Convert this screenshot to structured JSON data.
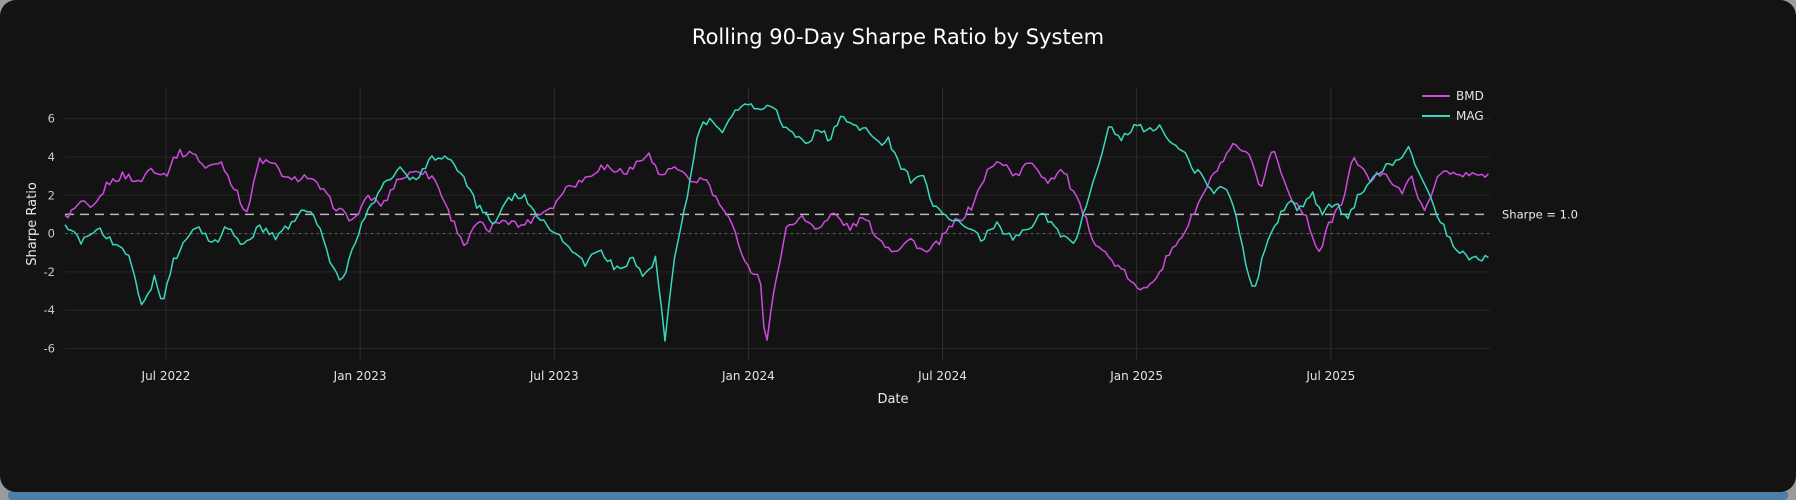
{
  "frame": {
    "panel_bg": "#131313",
    "outer_bg": "#9a9a9a",
    "accent_strip_color": "#4d7fa9"
  },
  "chart_data": {
    "type": "line",
    "title": "Rolling 90-Day Sharpe Ratio by System",
    "xlabel": "Date",
    "ylabel": "Sharpe Ratio",
    "x_domain": [
      2022.24,
      2025.91
    ],
    "ylim": [
      -6.6,
      7.6
    ],
    "y_ticks": [
      -6,
      -4,
      -2,
      0,
      2,
      4,
      6
    ],
    "x_ticks": [
      {
        "pos": 2022.5,
        "label": "Jul 2022"
      },
      {
        "pos": 2023.0,
        "label": "Jan 2023"
      },
      {
        "pos": 2023.5,
        "label": "Jul 2023"
      },
      {
        "pos": 2024.0,
        "label": "Jan 2024"
      },
      {
        "pos": 2024.5,
        "label": "Jul 2024"
      },
      {
        "pos": 2025.0,
        "label": "Jan 2025"
      },
      {
        "pos": 2025.5,
        "label": "Jul 2025"
      }
    ],
    "grid": true,
    "legend_position": "top-right",
    "reference_lines": [
      {
        "y": 1.0,
        "label": "Sharpe = 1.0",
        "color": "#b8b8b8",
        "dash": "9 6",
        "width": 1.5
      },
      {
        "y": 0.0,
        "label": "",
        "color": "#6e6e6e",
        "dash": "2 4",
        "width": 1
      }
    ],
    "render": {
      "jitter": 0.32,
      "step_days": 3
    },
    "series": [
      {
        "name": "BMD",
        "color": "#cf4ae0",
        "keypoints": [
          [
            2022.24,
            0.9
          ],
          [
            2022.28,
            1.6
          ],
          [
            2022.31,
            1.1
          ],
          [
            2022.35,
            2.6
          ],
          [
            2022.39,
            3.1
          ],
          [
            2022.43,
            2.5
          ],
          [
            2022.46,
            3.3
          ],
          [
            2022.5,
            3.0
          ],
          [
            2022.53,
            4.3
          ],
          [
            2022.57,
            4.2
          ],
          [
            2022.6,
            3.3
          ],
          [
            2022.64,
            3.8
          ],
          [
            2022.68,
            2.1
          ],
          [
            2022.71,
            1.2
          ],
          [
            2022.74,
            3.9
          ],
          [
            2022.78,
            3.6
          ],
          [
            2022.82,
            2.7
          ],
          [
            2022.86,
            3.1
          ],
          [
            2022.9,
            2.4
          ],
          [
            2022.94,
            1.3
          ],
          [
            2022.98,
            0.7
          ],
          [
            2023.02,
            1.9
          ],
          [
            2023.06,
            1.4
          ],
          [
            2023.1,
            2.9
          ],
          [
            2023.15,
            3.4
          ],
          [
            2023.19,
            2.8
          ],
          [
            2023.23,
            1.0
          ],
          [
            2023.27,
            -0.6
          ],
          [
            2023.3,
            0.6
          ],
          [
            2023.33,
            0.1
          ],
          [
            2023.37,
            0.9
          ],
          [
            2023.41,
            0.3
          ],
          [
            2023.45,
            1.0
          ],
          [
            2023.5,
            1.6
          ],
          [
            2023.54,
            2.5
          ],
          [
            2023.58,
            3.0
          ],
          [
            2023.62,
            3.6
          ],
          [
            2023.66,
            3.1
          ],
          [
            2023.7,
            3.4
          ],
          [
            2023.74,
            4.4
          ],
          [
            2023.77,
            3.1
          ],
          [
            2023.81,
            3.4
          ],
          [
            2023.85,
            2.7
          ],
          [
            2023.89,
            2.9
          ],
          [
            2023.92,
            1.7
          ],
          [
            2023.96,
            0.2
          ],
          [
            2024.0,
            -1.9
          ],
          [
            2024.03,
            -2.3
          ],
          [
            2024.045,
            -6.2
          ],
          [
            2024.07,
            -2.4
          ],
          [
            2024.1,
            0.4
          ],
          [
            2024.14,
            0.9
          ],
          [
            2024.18,
            0.3
          ],
          [
            2024.22,
            1.0
          ],
          [
            2024.26,
            0.2
          ],
          [
            2024.3,
            0.9
          ],
          [
            2024.34,
            -0.3
          ],
          [
            2024.38,
            -0.9
          ],
          [
            2024.42,
            -0.3
          ],
          [
            2024.46,
            -1.1
          ],
          [
            2024.5,
            -0.3
          ],
          [
            2024.54,
            0.7
          ],
          [
            2024.58,
            1.6
          ],
          [
            2024.62,
            3.4
          ],
          [
            2024.65,
            3.9
          ],
          [
            2024.69,
            3.0
          ],
          [
            2024.73,
            3.7
          ],
          [
            2024.77,
            2.7
          ],
          [
            2024.81,
            3.3
          ],
          [
            2024.85,
            1.6
          ],
          [
            2024.89,
            -0.4
          ],
          [
            2024.93,
            -1.4
          ],
          [
            2024.97,
            -2.1
          ],
          [
            2025.01,
            -3.0
          ],
          [
            2025.05,
            -2.1
          ],
          [
            2025.09,
            -1.0
          ],
          [
            2025.13,
            0.4
          ],
          [
            2025.17,
            2.0
          ],
          [
            2025.21,
            3.6
          ],
          [
            2025.25,
            4.6
          ],
          [
            2025.29,
            4.1
          ],
          [
            2025.32,
            2.3
          ],
          [
            2025.35,
            4.4
          ],
          [
            2025.39,
            2.1
          ],
          [
            2025.43,
            1.2
          ],
          [
            2025.47,
            -0.9
          ],
          [
            2025.5,
            0.6
          ],
          [
            2025.53,
            1.6
          ],
          [
            2025.56,
            4.1
          ],
          [
            2025.6,
            2.8
          ],
          [
            2025.64,
            3.3
          ],
          [
            2025.68,
            2.2
          ],
          [
            2025.71,
            2.9
          ],
          [
            2025.74,
            1.1
          ],
          [
            2025.78,
            3.3
          ],
          [
            2025.83,
            2.9
          ],
          [
            2025.91,
            3.0
          ]
        ]
      },
      {
        "name": "MAG",
        "color": "#37d9bd",
        "keypoints": [
          [
            2022.24,
            0.3
          ],
          [
            2022.28,
            -0.5
          ],
          [
            2022.32,
            0.2
          ],
          [
            2022.36,
            -0.4
          ],
          [
            2022.4,
            -1.0
          ],
          [
            2022.44,
            -3.9
          ],
          [
            2022.47,
            -2.4
          ],
          [
            2022.49,
            -3.8
          ],
          [
            2022.52,
            -1.4
          ],
          [
            2022.55,
            -0.3
          ],
          [
            2022.58,
            0.2
          ],
          [
            2022.62,
            -0.6
          ],
          [
            2022.66,
            0.3
          ],
          [
            2022.7,
            -0.6
          ],
          [
            2022.74,
            0.4
          ],
          [
            2022.78,
            -0.2
          ],
          [
            2022.82,
            0.5
          ],
          [
            2022.86,
            1.5
          ],
          [
            2022.89,
            0.7
          ],
          [
            2022.92,
            -1.2
          ],
          [
            2022.95,
            -2.6
          ],
          [
            2022.98,
            -0.9
          ],
          [
            2023.02,
            1.2
          ],
          [
            2023.06,
            2.8
          ],
          [
            2023.1,
            3.3
          ],
          [
            2023.14,
            2.7
          ],
          [
            2023.18,
            3.9
          ],
          [
            2023.22,
            4.1
          ],
          [
            2023.26,
            3.1
          ],
          [
            2023.3,
            1.5
          ],
          [
            2023.34,
            0.6
          ],
          [
            2023.38,
            1.8
          ],
          [
            2023.42,
            2.0
          ],
          [
            2023.46,
            0.8
          ],
          [
            2023.5,
            0.3
          ],
          [
            2023.54,
            -0.8
          ],
          [
            2023.58,
            -1.5
          ],
          [
            2023.62,
            -1.0
          ],
          [
            2023.66,
            -1.9
          ],
          [
            2023.7,
            -1.2
          ],
          [
            2023.73,
            -2.1
          ],
          [
            2023.76,
            -1.4
          ],
          [
            2023.785,
            -5.6
          ],
          [
            2023.81,
            -1.1
          ],
          [
            2023.84,
            1.8
          ],
          [
            2023.87,
            5.4
          ],
          [
            2023.9,
            6.0
          ],
          [
            2023.93,
            5.3
          ],
          [
            2023.97,
            6.6
          ],
          [
            2024.0,
            6.8
          ],
          [
            2024.03,
            6.4
          ],
          [
            2024.06,
            6.8
          ],
          [
            2024.09,
            5.8
          ],
          [
            2024.12,
            5.2
          ],
          [
            2024.15,
            4.6
          ],
          [
            2024.18,
            5.6
          ],
          [
            2024.21,
            5.0
          ],
          [
            2024.24,
            6.3
          ],
          [
            2024.27,
            5.8
          ],
          [
            2024.3,
            5.4
          ],
          [
            2024.33,
            4.6
          ],
          [
            2024.36,
            4.9
          ],
          [
            2024.39,
            3.5
          ],
          [
            2024.42,
            2.7
          ],
          [
            2024.45,
            2.9
          ],
          [
            2024.48,
            1.5
          ],
          [
            2024.52,
            0.8
          ],
          [
            2024.56,
            0.3
          ],
          [
            2024.6,
            -0.2
          ],
          [
            2024.64,
            0.4
          ],
          [
            2024.68,
            -0.3
          ],
          [
            2024.72,
            0.3
          ],
          [
            2024.76,
            1.0
          ],
          [
            2024.8,
            0.2
          ],
          [
            2024.84,
            -0.7
          ],
          [
            2024.87,
            1.5
          ],
          [
            2024.9,
            3.5
          ],
          [
            2024.93,
            5.7
          ],
          [
            2024.96,
            5.1
          ],
          [
            2025.0,
            5.8
          ],
          [
            2025.03,
            5.3
          ],
          [
            2025.06,
            5.6
          ],
          [
            2025.09,
            4.6
          ],
          [
            2025.12,
            4.4
          ],
          [
            2025.16,
            3.0
          ],
          [
            2025.19,
            2.2
          ],
          [
            2025.22,
            2.6
          ],
          [
            2025.25,
            1.5
          ],
          [
            2025.28,
            -1.4
          ],
          [
            2025.3,
            -3.1
          ],
          [
            2025.33,
            -1.0
          ],
          [
            2025.36,
            0.5
          ],
          [
            2025.39,
            1.8
          ],
          [
            2025.42,
            1.2
          ],
          [
            2025.45,
            2.1
          ],
          [
            2025.48,
            1.0
          ],
          [
            2025.51,
            1.5
          ],
          [
            2025.54,
            0.8
          ],
          [
            2025.57,
            1.8
          ],
          [
            2025.6,
            2.6
          ],
          [
            2025.64,
            3.4
          ],
          [
            2025.68,
            4.1
          ],
          [
            2025.7,
            4.7
          ],
          [
            2025.73,
            3.0
          ],
          [
            2025.76,
            1.6
          ],
          [
            2025.79,
            0.4
          ],
          [
            2025.82,
            -0.8
          ],
          [
            2025.86,
            -1.2
          ],
          [
            2025.91,
            -1.5
          ]
        ]
      }
    ]
  }
}
